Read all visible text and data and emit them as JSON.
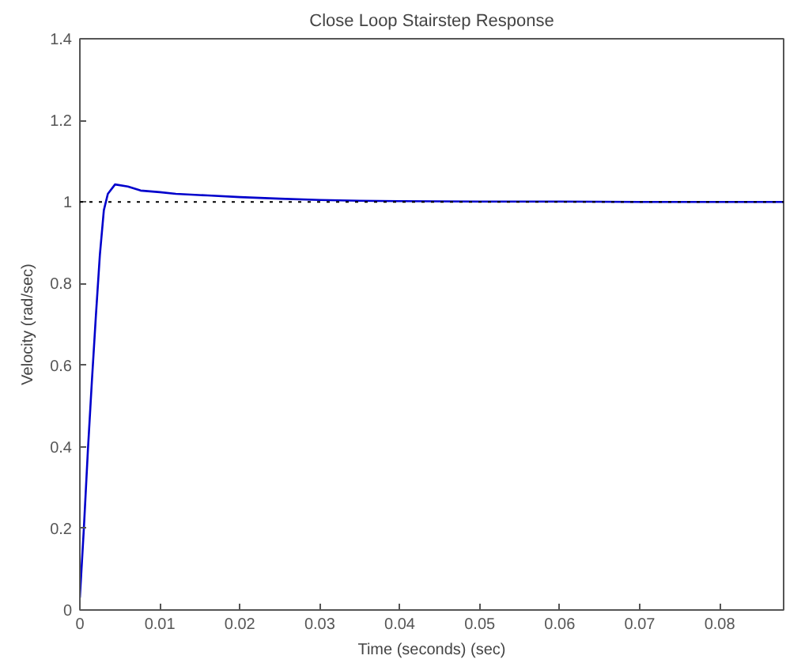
{
  "chart_data": {
    "type": "line",
    "title": "Close Loop Stairstep Response",
    "xlabel": "Time (seconds) (sec)",
    "ylabel": "Velocity (rad/sec)",
    "x": [
      0,
      0.0005,
      0.001,
      0.0015,
      0.002,
      0.0025,
      0.003,
      0.0035,
      0.0044,
      0.006,
      0.0076,
      0.01,
      0.012,
      0.016,
      0.02,
      0.025,
      0.03,
      0.035,
      0.04,
      0.05,
      0.06,
      0.07,
      0.08,
      0.088
    ],
    "series": [
      {
        "color": "#0000cc",
        "values": [
          0.03,
          0.2,
          0.39,
          0.56,
          0.72,
          0.87,
          0.98,
          1.02,
          1.043,
          1.038,
          1.028,
          1.024,
          1.02,
          1.016,
          1.012,
          1.008,
          1.005,
          1.003,
          1.002,
          1.001,
          1.001,
          1.0,
          1.0,
          1.0
        ]
      }
    ],
    "xlim": [
      0,
      0.088
    ],
    "ylim": [
      0,
      1.4
    ],
    "xticks": [
      0,
      0.01,
      0.02,
      0.03,
      0.04,
      0.05,
      0.06,
      0.07,
      0.08
    ],
    "yticks": [
      0,
      0.2,
      0.4,
      0.6,
      0.8,
      1,
      1.2,
      1.4
    ],
    "ref_lines": [
      {
        "axis": "y",
        "value": 1,
        "color": "#000000",
        "line_style": "dotted"
      }
    ],
    "grid": false,
    "marker": "none",
    "line_style": "solid"
  }
}
